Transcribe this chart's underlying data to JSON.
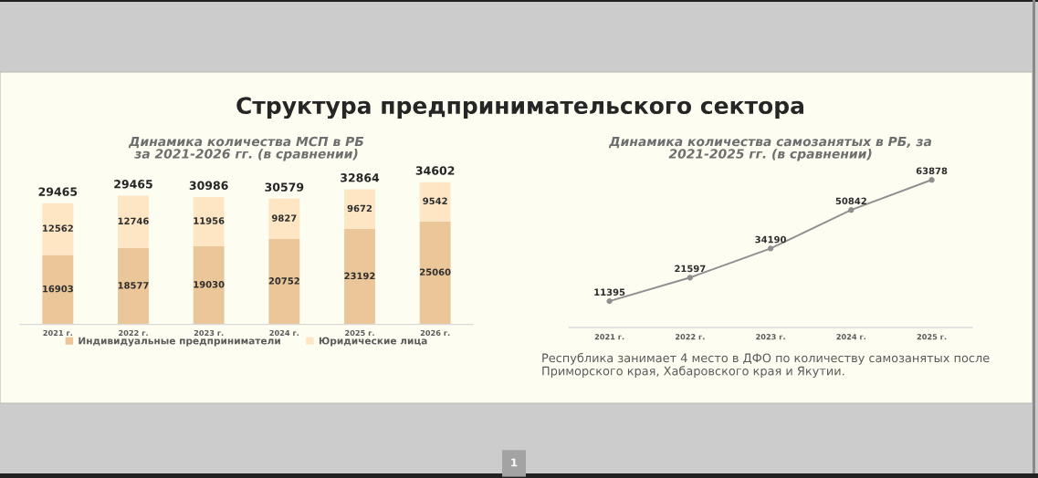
{
  "chart_data": [
    {
      "type": "other",
      "title": "Структура предпринимательского сектора",
      "annotations": [
        "1"
      ]
    },
    {
      "type": "bar",
      "title": "Динамика количества МСП в РБ\nза 2021-2026 гг. (в сравнении)",
      "categories": [
        "2021 г.",
        "2022 г.",
        "2023 г.",
        "2024 г.",
        "2025 г.",
        "2026 г."
      ],
      "stacked": true,
      "series": [
        {
          "name": "Индивидуальные предприниматели",
          "color": "#ebc699",
          "values": [
            16903,
            18577,
            19030,
            20752,
            23192,
            25060
          ]
        },
        {
          "name": "Юридические лица",
          "color": "#fee6c5",
          "values": [
            12562,
            12746,
            11956,
            9827,
            9672,
            9542
          ]
        }
      ],
      "data_labels": true,
      "totals": [
        "29465",
        null,
        "30986",
        "30579",
        "32864",
        "34602"
      ],
      "annotations": [
        {
          "text": "29465",
          "x": "2022 г.",
          "y": 31323
        }
      ],
      "legend": "bottom",
      "tick_labels": "x"
    },
    {
      "type": "line",
      "title": "Динамика количества самозанятых в РБ, за\n2021-2025 гг. (в сравнении)",
      "categories": [
        "2021 г.",
        "2022 г.",
        "2023 г.",
        "2024 г.",
        "2025 г."
      ],
      "series": [
        {
          "color": "#8f8f8f",
          "values": [
            11395,
            21597,
            34190,
            50842,
            63878
          ]
        }
      ],
      "marker": "circle",
      "line_style": "solid",
      "data_labels": true,
      "tick_labels": "x",
      "annotations": [
        "Республика занимает 4 место в ДФО по количеству самозанятых после Приморского края, Хабаровского края и Якутии."
      ]
    }
  ]
}
